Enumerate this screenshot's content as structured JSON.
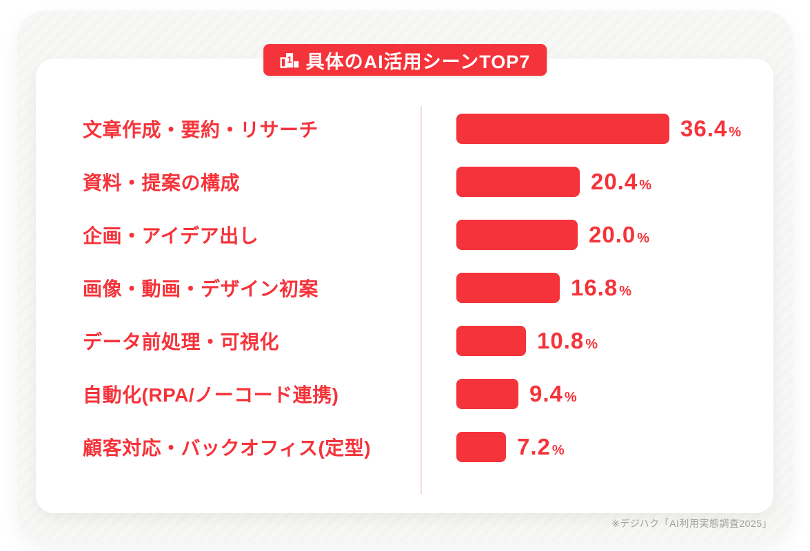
{
  "page": {
    "title": "具体のAI活用シーンTOP7",
    "source_note": "※デジハク「AI利用実態調査2025」"
  },
  "colors": {
    "accent": "#F5333A",
    "divider": "#F5DBDB",
    "frame_background": "#F7F7F5",
    "card_background": "#FFFFFF",
    "note_text": "#9E9E9E",
    "banner_text": "#FFFFFF"
  },
  "chart_data": {
    "type": "bar",
    "orientation": "horizontal",
    "title": "具体のAI活用シーンTOP7",
    "categories": [
      "文章作成・要約・リサーチ",
      "資料・提案の構成",
      "企画・アイデア出し",
      "画像・動画・デザイン初案",
      "データ前処理・可視化",
      "自動化(RPA/ノーコード連携)",
      "顧客対応・バックオフィス(定型)"
    ],
    "values": [
      36.4,
      20.4,
      20.0,
      16.8,
      10.8,
      9.4,
      7.2
    ],
    "value_labels": [
      "36.4",
      "20.4",
      "20.0",
      "16.8",
      "10.8",
      "9.4",
      "7.2"
    ],
    "unit": "%",
    "xlim": [
      0,
      40
    ],
    "grid": false,
    "legend": "none",
    "bar_color": "#F5333A",
    "label_color": "#F5333A"
  }
}
